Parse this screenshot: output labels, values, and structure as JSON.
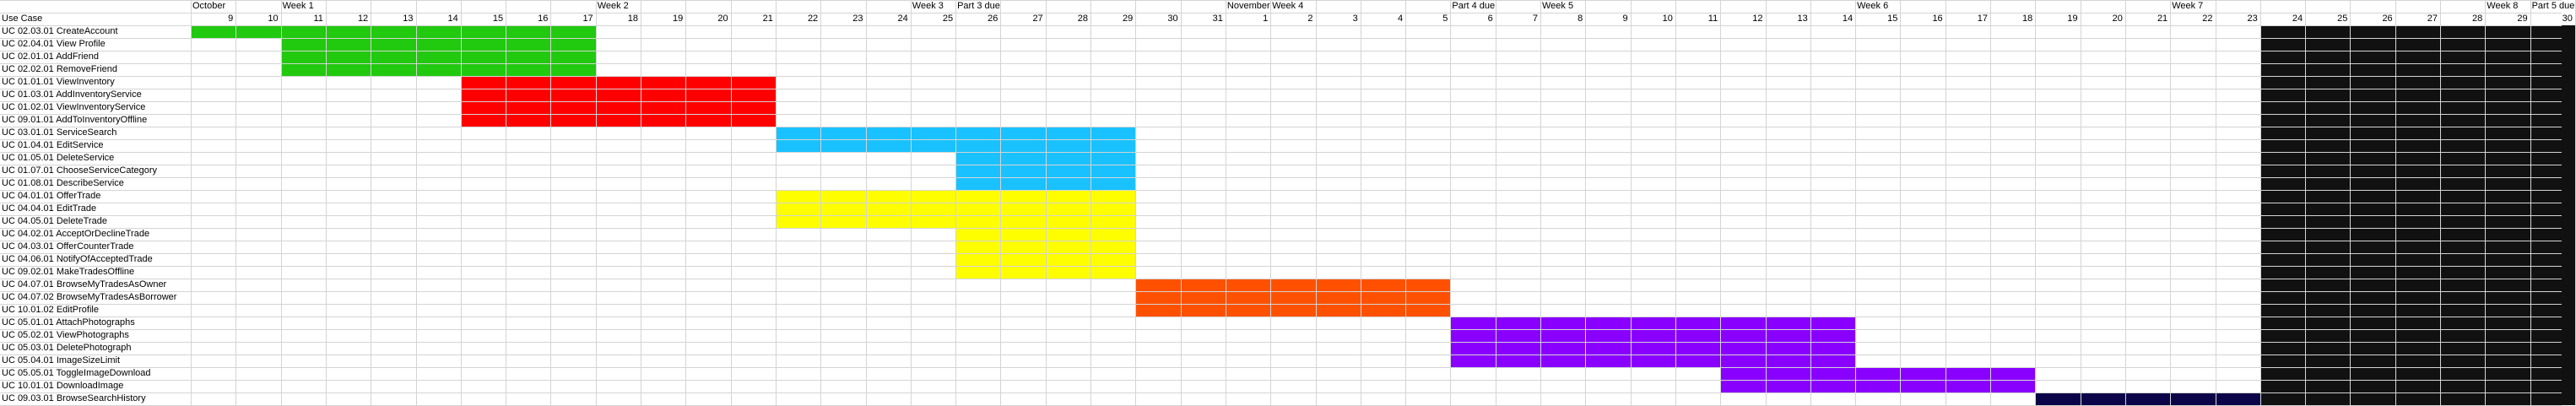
{
  "sheet": {
    "corner_label": "Use Case",
    "day_numbers": [
      "9",
      "10",
      "11",
      "12",
      "13",
      "14",
      "15",
      "16",
      "17",
      "18",
      "19",
      "20",
      "21",
      "22",
      "23",
      "24",
      "25",
      "26",
      "27",
      "28",
      "29",
      "30",
      "31",
      "1",
      "2",
      "3",
      "4",
      "5",
      "6",
      "7",
      "8",
      "9",
      "10",
      "11",
      "12",
      "13",
      "14",
      "15",
      "16",
      "17",
      "18",
      "19",
      "20",
      "21",
      "22",
      "23",
      "24",
      "25",
      "26",
      "27",
      "28",
      "29",
      "30"
    ],
    "header_markers": [
      {
        "col": 0,
        "text": "October"
      },
      {
        "col": 2,
        "text": "Week 1"
      },
      {
        "col": 9,
        "text": "Week 2"
      },
      {
        "col": 16,
        "text": "Week 3"
      },
      {
        "col": 17,
        "text": "Part 3 due"
      },
      {
        "col": 23,
        "text": "November"
      },
      {
        "col": 24,
        "text": "Week 4"
      },
      {
        "col": 28,
        "text": "Part 4 due"
      },
      {
        "col": 30,
        "text": "Week 5"
      },
      {
        "col": 37,
        "text": "Week 6"
      },
      {
        "col": 44,
        "text": "Week 7"
      },
      {
        "col": 51,
        "text": "Week 8"
      },
      {
        "col": 52,
        "text": "Part 5 due"
      }
    ],
    "rows": [
      "UC 02.03.01 CreateAccount",
      "UC 02.04.01 View Profile",
      "UC 02.01.01 AddFriend",
      "UC 02.02.01 RemoveFriend",
      "UC 01.01.01 ViewInventory",
      "UC 01.03.01 AddInventoryService",
      "UC 01.02.01 ViewInventoryService",
      "UC 09.01.01 AddToInventoryOffline",
      "UC 03.01.01 ServiceSearch",
      "UC 01.04.01 EditService",
      "UC 01.05.01 DeleteService",
      "UC 01.07.01 ChooseServiceCategory",
      "UC 01.08.01 DescribeService",
      "UC 04.01.01 OfferTrade",
      "UC 04.04.01 EditTrade",
      "UC 04.05.01 DeleteTrade",
      "UC 04.02.01 AcceptOrDeclineTrade",
      "UC 04.03.01 OfferCounterTrade",
      "UC 04.06.01 NotifyOfAcceptedTrade",
      "UC 09.02.01 MakeTradesOffline",
      "UC 04.07.01 BrowseMyTradesAsOwner",
      "UC 04.07.02 BrowseMyTradesAsBorrower",
      "UC 10.01.02 EditProfile",
      "UC 05.01.01 AttachPhotographs",
      "UC 05.02.01 ViewPhotographs",
      "UC 05.03.01 DeletePhotograph",
      "UC 05.04.01 ImageSizeLimit",
      "UC 05.05.01 ToggleImageDownload",
      "UC 10.01.01 DownloadImage",
      "UC 09.03.01 BrowseSearchHistory"
    ],
    "bars": [
      {
        "row_start": 0,
        "row_end": 0,
        "col_start": 0,
        "col_end": 8,
        "color": "#21c90f"
      },
      {
        "row_start": 1,
        "row_end": 3,
        "col_start": 2,
        "col_end": 8,
        "color": "#21c90f"
      },
      {
        "row_start": 4,
        "row_end": 7,
        "col_start": 6,
        "col_end": 12,
        "color": "#fe0000"
      },
      {
        "row_start": 8,
        "row_end": 9,
        "col_start": 13,
        "col_end": 20,
        "color": "#19c2fe"
      },
      {
        "row_start": 10,
        "row_end": 12,
        "col_start": 17,
        "col_end": 20,
        "color": "#19c2fe"
      },
      {
        "row_start": 13,
        "row_end": 15,
        "col_start": 13,
        "col_end": 20,
        "color": "#fefe00"
      },
      {
        "row_start": 16,
        "row_end": 19,
        "col_start": 17,
        "col_end": 20,
        "color": "#fefe00"
      },
      {
        "row_start": 20,
        "row_end": 22,
        "col_start": 21,
        "col_end": 27,
        "color": "#fe5100"
      },
      {
        "row_start": 23,
        "row_end": 26,
        "col_start": 28,
        "col_end": 36,
        "color": "#8900fe"
      },
      {
        "row_start": 27,
        "row_end": 28,
        "col_start": 34,
        "col_end": 40,
        "color": "#8900fe"
      },
      {
        "row_start": 29,
        "row_end": 29,
        "col_start": 41,
        "col_end": 45,
        "color": "#0c0448"
      },
      {
        "row_start": 0,
        "row_end": 29,
        "col_start": 46,
        "col_end": 52,
        "color": "#111111"
      }
    ]
  }
}
